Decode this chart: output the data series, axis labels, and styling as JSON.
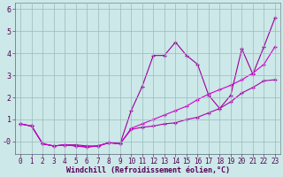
{
  "xlabel": "Windchill (Refroidissement éolien,°C)",
  "bg_color": "#cce8e8",
  "line_color1": "#990099",
  "line_color2": "#aa00aa",
  "line_color3": "#cc00cc",
  "xlim": [
    -0.5,
    23.5
  ],
  "ylim": [
    -0.55,
    6.3
  ],
  "xticks": [
    0,
    1,
    2,
    3,
    4,
    5,
    6,
    7,
    8,
    9,
    10,
    11,
    12,
    13,
    14,
    15,
    16,
    17,
    18,
    19,
    20,
    21,
    22,
    23
  ],
  "yticks": [
    0,
    1,
    2,
    3,
    4,
    5,
    6
  ],
  "ytick_labels": [
    "-0",
    "1",
    "2",
    "3",
    "4",
    "5",
    "6"
  ],
  "hours": [
    0,
    1,
    2,
    3,
    4,
    5,
    6,
    7,
    8,
    9,
    10,
    11,
    12,
    13,
    14,
    15,
    16,
    17,
    18,
    19,
    20,
    21,
    22,
    23
  ],
  "line1": [
    0.8,
    0.7,
    -0.1,
    -0.2,
    -0.15,
    -0.15,
    -0.2,
    -0.2,
    -0.05,
    -0.1,
    1.4,
    2.5,
    3.9,
    3.9,
    4.5,
    3.9,
    3.5,
    2.1,
    1.5,
    2.1,
    4.2,
    3.05,
    4.3,
    5.6
  ],
  "line2": [
    0.8,
    0.7,
    -0.1,
    -0.2,
    -0.15,
    -0.2,
    -0.25,
    -0.2,
    -0.05,
    -0.1,
    0.55,
    0.65,
    0.7,
    0.8,
    0.85,
    1.0,
    1.1,
    1.3,
    1.5,
    1.8,
    2.2,
    2.45,
    2.75,
    2.8
  ],
  "line3": [
    0.8,
    0.7,
    -0.1,
    -0.2,
    -0.15,
    -0.2,
    -0.25,
    -0.2,
    -0.05,
    -0.1,
    0.6,
    0.8,
    1.0,
    1.2,
    1.4,
    1.6,
    1.9,
    2.15,
    2.35,
    2.55,
    2.8,
    3.1,
    3.5,
    4.3
  ],
  "grid_color": "#99bbbb",
  "font_size": 6.0,
  "marker_size": 2.5,
  "lw": 0.8
}
